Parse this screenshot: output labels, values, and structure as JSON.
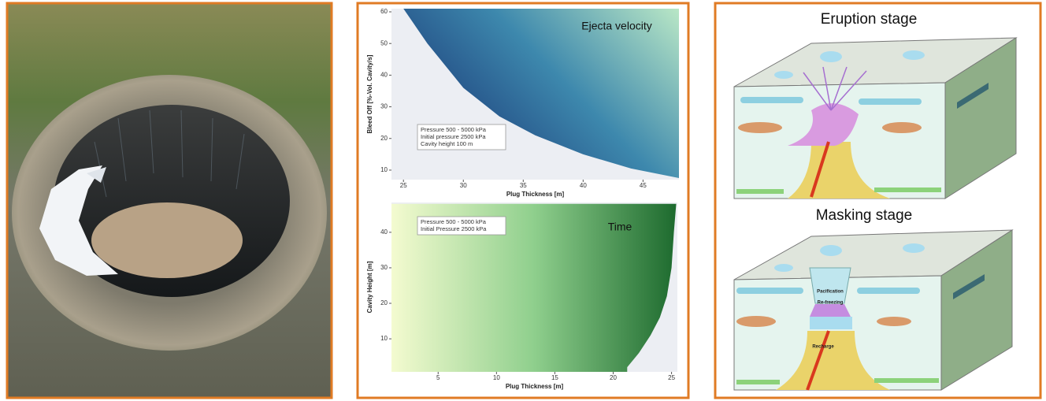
{
  "chart_data": [
    {
      "type": "area",
      "title": "Ejecta velocity",
      "xlabel": "Plug Thickness [m]",
      "ylabel": "Bleed Off [%-Vol. Cavity/s]",
      "annotation": [
        "Pressure 500 - 5000 kPa",
        "Initial pressure 2500 kPa",
        "Cavity height 100 m"
      ],
      "x": [
        25,
        27,
        30,
        33,
        36,
        40,
        44,
        48
      ],
      "values": [
        61,
        50,
        36,
        27,
        21,
        15,
        10.5,
        7.5
      ],
      "fill": "above",
      "colors": [
        "#1b3a78",
        "#3d88ad",
        "#b9e7c6"
      ],
      "background": "#eceef3",
      "xlim": [
        24,
        48
      ],
      "ylim": [
        7,
        61
      ],
      "xticks": [
        25,
        30,
        35,
        40,
        45
      ],
      "yticks": [
        10,
        20,
        30,
        40,
        50,
        60
      ]
    },
    {
      "type": "area",
      "title": "Time",
      "xlabel": "Plug Thickness [m]",
      "ylabel": "Cavity Height [m]",
      "annotation": [
        "Pressure 500 - 5000 kPa",
        "Initial Pressure 2500 kPa"
      ],
      "x": [
        25.4,
        25.2,
        25,
        24.6,
        24,
        23.2,
        22.2,
        21.2
      ],
      "values": [
        48,
        40,
        30,
        22,
        16,
        11,
        6,
        2
      ],
      "fill": "left",
      "colors": [
        "#f4fbd0",
        "#8fcf8d",
        "#1d6a2e"
      ],
      "background": "#eceef3",
      "xlim": [
        1,
        25.5
      ],
      "ylim": [
        0.7,
        48.4
      ],
      "xticks": [
        5,
        10,
        15,
        20,
        25
      ],
      "yticks": [
        10,
        20,
        30,
        40
      ]
    }
  ],
  "diagram": {
    "stages": [
      "Eruption stage",
      "Masking stage"
    ],
    "labels": [
      "Pacification",
      "Re-freezing",
      "Recharge"
    ]
  }
}
